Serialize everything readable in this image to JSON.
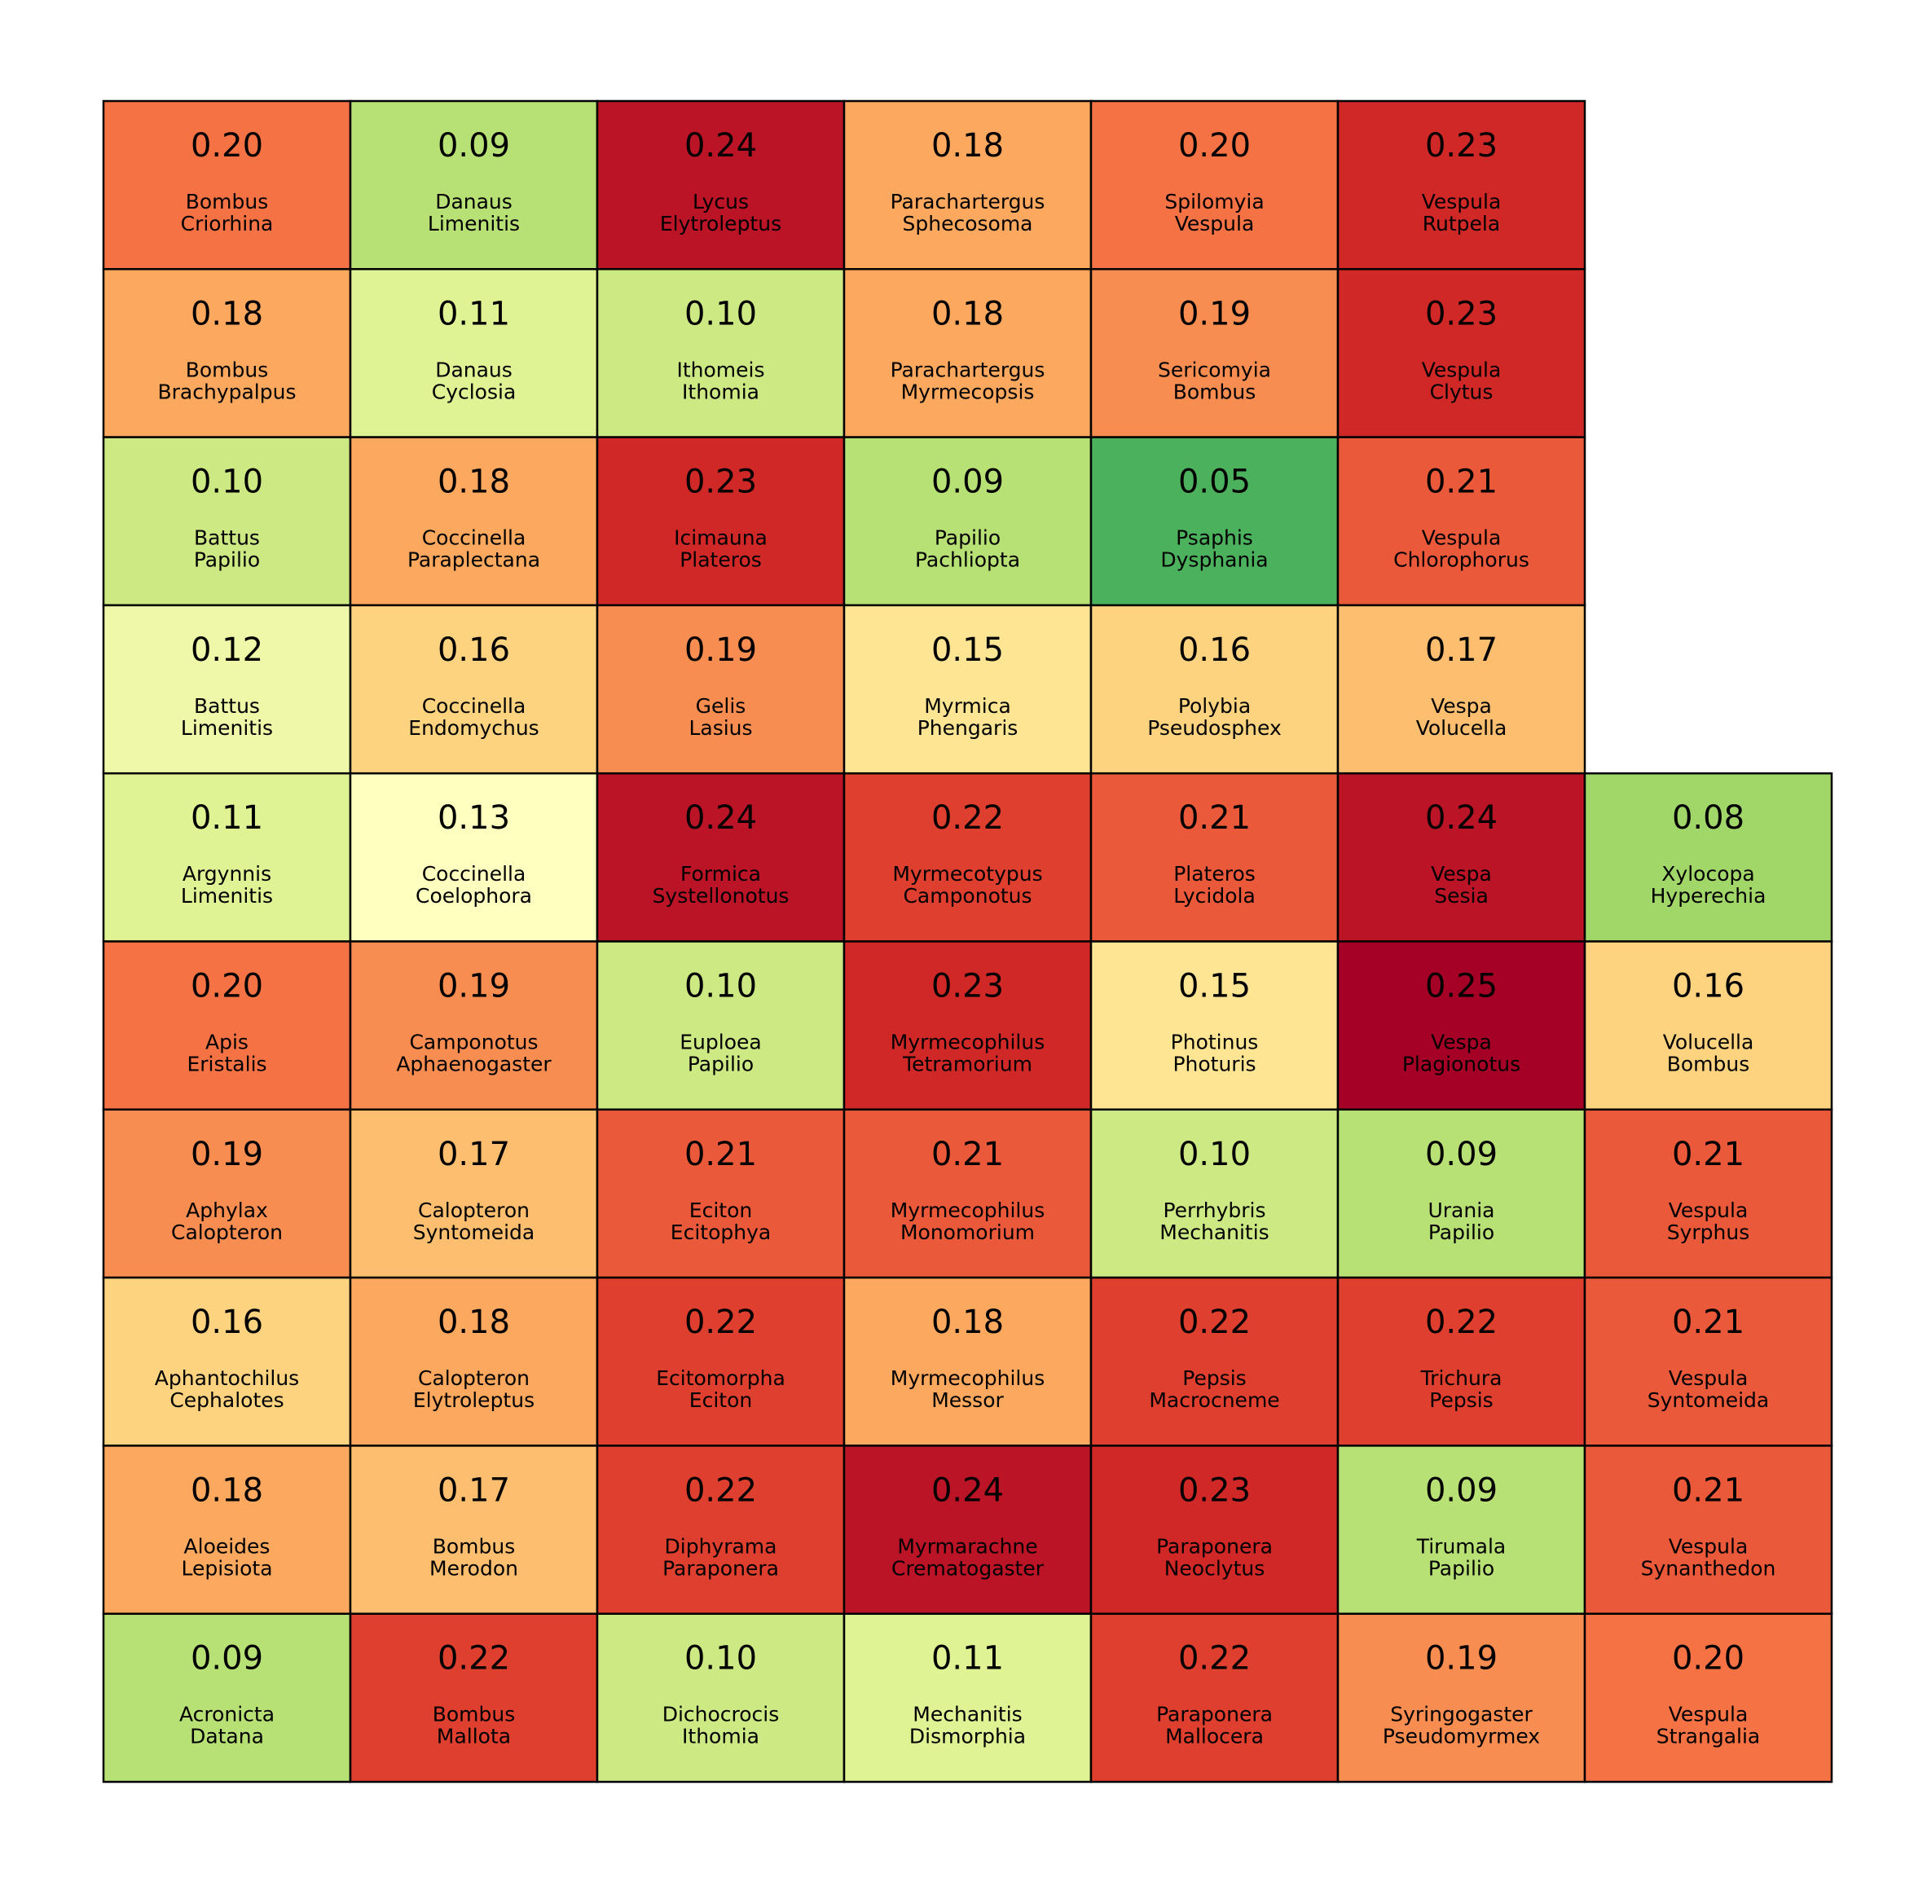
{
  "chart_data": {
    "type": "heatmap",
    "title": "",
    "xlabel": "",
    "ylabel": "",
    "colormap": "RdYlGn_r",
    "value_range": [
      0.05,
      0.25
    ],
    "grid_lines": true,
    "rows": [
      [
        {
          "value": "0.20",
          "labels": [
            "Bombus",
            "Criorhina"
          ]
        },
        {
          "value": "0.09",
          "labels": [
            "Danaus",
            "Limenitis"
          ]
        },
        {
          "value": "0.24",
          "labels": [
            "Lycus",
            "Elytroleptus"
          ]
        },
        {
          "value": "0.18",
          "labels": [
            "Parachartergus",
            "Sphecosoma"
          ]
        },
        {
          "value": "0.20",
          "labels": [
            "Spilomyia",
            "Vespula"
          ]
        },
        {
          "value": "0.23",
          "labels": [
            "Vespula",
            "Rutpela"
          ]
        }
      ],
      [
        {
          "value": "0.18",
          "labels": [
            "Bombus",
            "Brachypalpus"
          ]
        },
        {
          "value": "0.11",
          "labels": [
            "Danaus",
            "Cyclosia"
          ]
        },
        {
          "value": "0.10",
          "labels": [
            "Ithomeis",
            "Ithomia"
          ]
        },
        {
          "value": "0.18",
          "labels": [
            "Parachartergus",
            "Myrmecopsis"
          ]
        },
        {
          "value": "0.19",
          "labels": [
            "Sericomyia",
            "Bombus"
          ]
        },
        {
          "value": "0.23",
          "labels": [
            "Vespula",
            "Clytus"
          ]
        }
      ],
      [
        {
          "value": "0.10",
          "labels": [
            "Battus",
            "Papilio"
          ]
        },
        {
          "value": "0.18",
          "labels": [
            "Coccinella",
            "Paraplectana"
          ]
        },
        {
          "value": "0.23",
          "labels": [
            "Icimauna",
            "Plateros"
          ]
        },
        {
          "value": "0.09",
          "labels": [
            "Papilio",
            "Pachliopta"
          ]
        },
        {
          "value": "0.05",
          "labels": [
            "Psaphis",
            "Dysphania"
          ]
        },
        {
          "value": "0.21",
          "labels": [
            "Vespula",
            "Chlorophorus"
          ]
        }
      ],
      [
        {
          "value": "0.12",
          "labels": [
            "Battus",
            "Limenitis"
          ]
        },
        {
          "value": "0.16",
          "labels": [
            "Coccinella",
            "Endomychus"
          ]
        },
        {
          "value": "0.19",
          "labels": [
            "Gelis",
            "Lasius"
          ]
        },
        {
          "value": "0.15",
          "labels": [
            "Myrmica",
            "Phengaris"
          ]
        },
        {
          "value": "0.16",
          "labels": [
            "Polybia",
            "Pseudosphex"
          ]
        },
        {
          "value": "0.17",
          "labels": [
            "Vespa",
            "Volucella"
          ]
        }
      ],
      [
        {
          "value": "0.11",
          "labels": [
            "Argynnis",
            "Limenitis"
          ]
        },
        {
          "value": "0.13",
          "labels": [
            "Coccinella",
            "Coelophora"
          ]
        },
        {
          "value": "0.24",
          "labels": [
            "Formica",
            "Systellonotus"
          ]
        },
        {
          "value": "0.22",
          "labels": [
            "Myrmecotypus",
            "Camponotus"
          ]
        },
        {
          "value": "0.21",
          "labels": [
            "Plateros",
            "Lycidola"
          ]
        },
        {
          "value": "0.24",
          "labels": [
            "Vespa",
            "Sesia"
          ]
        },
        {
          "value": "0.08",
          "labels": [
            "Xylocopa",
            "Hyperechia"
          ]
        }
      ],
      [
        {
          "value": "0.20",
          "labels": [
            "Apis",
            "Eristalis"
          ]
        },
        {
          "value": "0.19",
          "labels": [
            "Camponotus",
            "Aphaenogaster"
          ]
        },
        {
          "value": "0.10",
          "labels": [
            "Euploea",
            "Papilio"
          ]
        },
        {
          "value": "0.23",
          "labels": [
            "Myrmecophilus",
            "Tetramorium"
          ]
        },
        {
          "value": "0.15",
          "labels": [
            "Photinus",
            "Photuris"
          ]
        },
        {
          "value": "0.25",
          "labels": [
            "Vespa",
            "Plagionotus"
          ]
        },
        {
          "value": "0.16",
          "labels": [
            "Volucella",
            "Bombus"
          ]
        }
      ],
      [
        {
          "value": "0.19",
          "labels": [
            "Aphylax",
            "Calopteron"
          ]
        },
        {
          "value": "0.17",
          "labels": [
            "Calopteron",
            "Syntomeida"
          ]
        },
        {
          "value": "0.21",
          "labels": [
            "Eciton",
            "Ecitophya"
          ]
        },
        {
          "value": "0.21",
          "labels": [
            "Myrmecophilus",
            "Monomorium"
          ]
        },
        {
          "value": "0.10",
          "labels": [
            "Perrhybris",
            "Mechanitis"
          ]
        },
        {
          "value": "0.09",
          "labels": [
            "Urania",
            "Papilio"
          ]
        },
        {
          "value": "0.21",
          "labels": [
            "Vespula",
            "Syrphus"
          ]
        }
      ],
      [
        {
          "value": "0.16",
          "labels": [
            "Aphantochilus",
            "Cephalotes"
          ]
        },
        {
          "value": "0.18",
          "labels": [
            "Calopteron",
            "Elytroleptus"
          ]
        },
        {
          "value": "0.22",
          "labels": [
            "Ecitomorpha",
            "Eciton"
          ]
        },
        {
          "value": "0.18",
          "labels": [
            "Myrmecophilus",
            "Messor"
          ]
        },
        {
          "value": "0.22",
          "labels": [
            "Pepsis",
            "Macrocneme"
          ]
        },
        {
          "value": "0.22",
          "labels": [
            "Trichura",
            "Pepsis"
          ]
        },
        {
          "value": "0.21",
          "labels": [
            "Vespula",
            "Syntomeida"
          ]
        }
      ],
      [
        {
          "value": "0.18",
          "labels": [
            "Aloeides",
            "Lepisiota"
          ]
        },
        {
          "value": "0.17",
          "labels": [
            "Bombus",
            "Merodon"
          ]
        },
        {
          "value": "0.22",
          "labels": [
            "Diphyrama",
            "Paraponera"
          ]
        },
        {
          "value": "0.24",
          "labels": [
            "Myrmarachne",
            "Crematogaster"
          ]
        },
        {
          "value": "0.23",
          "labels": [
            "Paraponera",
            "Neoclytus"
          ]
        },
        {
          "value": "0.09",
          "labels": [
            "Tirumala",
            "Papilio"
          ]
        },
        {
          "value": "0.21",
          "labels": [
            "Vespula",
            "Synanthedon"
          ]
        }
      ],
      [
        {
          "value": "0.09",
          "labels": [
            "Acronicta",
            "Datana"
          ]
        },
        {
          "value": "0.22",
          "labels": [
            "Bombus",
            "Mallota"
          ]
        },
        {
          "value": "0.10",
          "labels": [
            "Dichocrocis",
            "Ithomia"
          ]
        },
        {
          "value": "0.11",
          "labels": [
            "Mechanitis",
            "Dismorphia"
          ]
        },
        {
          "value": "0.22",
          "labels": [
            "Paraponera",
            "Mallocera"
          ]
        },
        {
          "value": "0.19",
          "labels": [
            "Syringogaster",
            "Pseudomyrmex"
          ]
        },
        {
          "value": "0.20",
          "labels": [
            "Vespula",
            "Strangalia"
          ]
        }
      ]
    ]
  }
}
